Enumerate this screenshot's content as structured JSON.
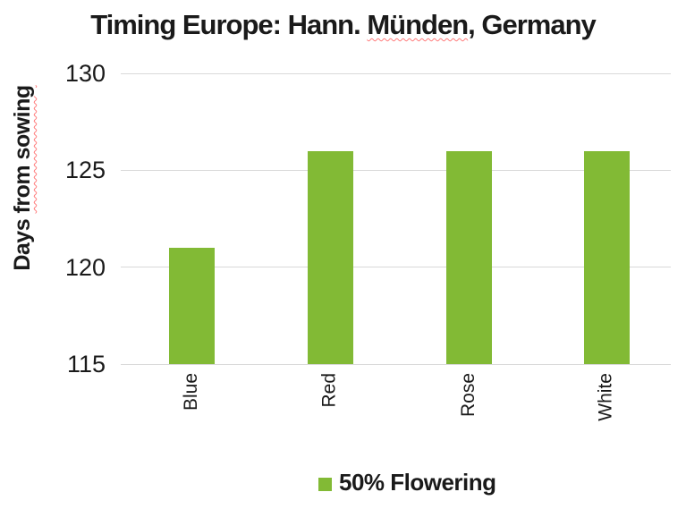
{
  "title": {
    "prefix": "Timing Europe: Hann. ",
    "misspelled": "Münden",
    "suffix": ", Germany"
  },
  "y_axis": {
    "label_prefix": "Days ",
    "label_misspelled": "from sowing"
  },
  "legend": {
    "label": "50% Flowering"
  },
  "colors": {
    "bar": "#82BA35",
    "gridline": "#D9D9D9",
    "squiggle": "#FF7A7A"
  },
  "chart_data": {
    "type": "bar",
    "title": "Timing Europe: Hann. Münden, Germany",
    "categories": [
      "Blue",
      "Red",
      "Rose",
      "White"
    ],
    "series": [
      {
        "name": "50% Flowering",
        "values": [
          121,
          126,
          126,
          126
        ],
        "color": "#82BA35"
      }
    ],
    "xlabel": "",
    "ylabel": "Days from sowing",
    "ylim": [
      115,
      130
    ],
    "yticks": [
      130,
      125,
      120,
      115
    ],
    "grid": true,
    "legend_position": "bottom"
  }
}
